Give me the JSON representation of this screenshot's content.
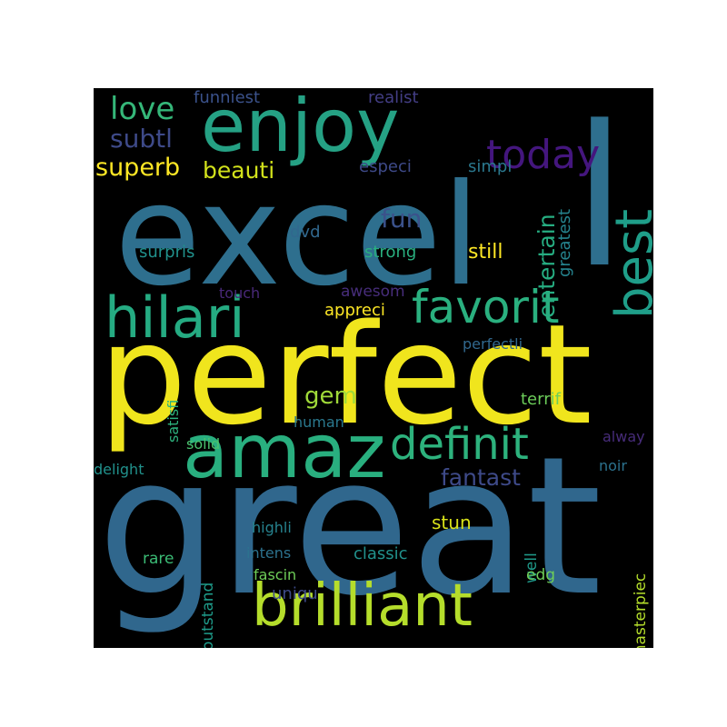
{
  "background_color": "#000000",
  "words": [
    {
      "text": "excel",
      "color": "#2e6f8e"
    },
    {
      "text": "l",
      "color": "#2e6f8e"
    },
    {
      "text": "perfect",
      "color": "#f0e51d"
    },
    {
      "text": "great",
      "color": "#30678d"
    },
    {
      "text": "enjoy",
      "color": "#25a184"
    },
    {
      "text": "amaz",
      "color": "#29af7f"
    },
    {
      "text": "hilari",
      "color": "#25ab82"
    },
    {
      "text": "brilliant",
      "color": "#b5dd2b"
    },
    {
      "text": "favorit",
      "color": "#2ab07f"
    },
    {
      "text": "definit",
      "color": "#2db27d"
    },
    {
      "text": "best",
      "color": "#1f9e89"
    },
    {
      "text": "today",
      "color": "#44167e"
    },
    {
      "text": "love",
      "color": "#35b779"
    },
    {
      "text": "subtl",
      "color": "#3e4a89"
    },
    {
      "text": "superb",
      "color": "#fde725"
    },
    {
      "text": "beauti",
      "color": "#d2e21b"
    },
    {
      "text": "funniest",
      "color": "#3b528b"
    },
    {
      "text": "realist",
      "color": "#433e85"
    },
    {
      "text": "entertain",
      "color": "#26ad81"
    },
    {
      "text": "fun",
      "color": "#3b528b"
    },
    {
      "text": "especi",
      "color": "#3e4a89"
    },
    {
      "text": "simpl",
      "color": "#2a788e"
    },
    {
      "text": "greatest",
      "color": "#25838e"
    },
    {
      "text": "dvd",
      "color": "#31688e"
    },
    {
      "text": "surpris",
      "color": "#21918c"
    },
    {
      "text": "strong",
      "color": "#29af7f"
    },
    {
      "text": "still",
      "color": "#fde725"
    },
    {
      "text": "touch",
      "color": "#482878"
    },
    {
      "text": "awesom",
      "color": "#472d7b"
    },
    {
      "text": "appreci",
      "color": "#fde725"
    },
    {
      "text": "perfectli",
      "color": "#31688e"
    },
    {
      "text": "satisfi",
      "color": "#2db27d"
    },
    {
      "text": "gem",
      "color": "#a0da39"
    },
    {
      "text": "terrif",
      "color": "#6ccd5a"
    },
    {
      "text": "human",
      "color": "#2a788e"
    },
    {
      "text": "solid",
      "color": "#4ac16d"
    },
    {
      "text": "alway",
      "color": "#472c7a"
    },
    {
      "text": "delight",
      "color": "#21918c"
    },
    {
      "text": "fantast",
      "color": "#3e4a89"
    },
    {
      "text": "noir",
      "color": "#2c728e"
    },
    {
      "text": "highli",
      "color": "#26828e"
    },
    {
      "text": "stun",
      "color": "#d8e219"
    },
    {
      "text": "rare",
      "color": "#3bbb75"
    },
    {
      "text": "intens",
      "color": "#2c728e"
    },
    {
      "text": "classic",
      "color": "#21918c"
    },
    {
      "text": "well",
      "color": "#1f9a8a"
    },
    {
      "text": "edg",
      "color": "#6ece58"
    },
    {
      "text": "fascin",
      "color": "#6ece58"
    },
    {
      "text": "uniqu",
      "color": "#3e4a89"
    },
    {
      "text": "outstand",
      "color": "#1e9b8a"
    },
    {
      "text": "masterpiec",
      "color": "#b5de2b"
    }
  ]
}
